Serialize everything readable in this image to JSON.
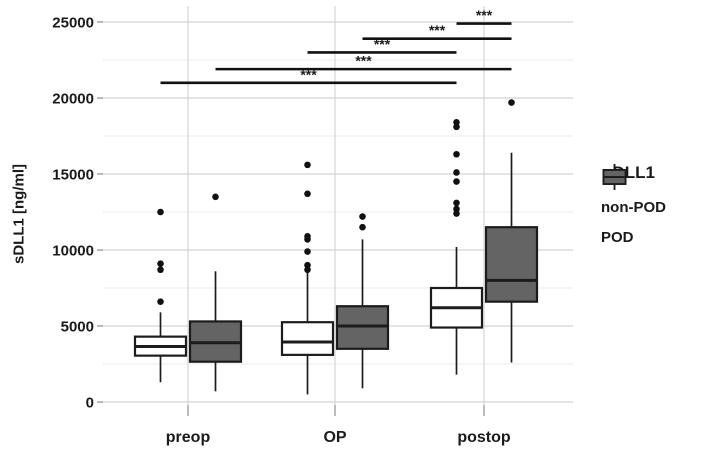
{
  "figure": {
    "y_axis_title": "sDLL1 [ng/ml]"
  },
  "legend": {
    "title": "sDLL1",
    "entries": [
      {
        "label": "non-POD",
        "fill": "#ffffff"
      },
      {
        "label": "POD",
        "fill": "#646464"
      }
    ]
  },
  "colors": {
    "box_stroke": "#1c1c1c",
    "grid_major": "#d4d4d4",
    "grid_minor": "#ebebeb",
    "tick": "#8f8f8f",
    "text": "#1a1a1a",
    "sig_bar": "#111111"
  },
  "chart_data": {
    "type": "grouped_boxplot",
    "title": "",
    "xlabel": "",
    "ylabel": "sDLL1 [ng/ml]",
    "categories": [
      "preop",
      "OP",
      "postop"
    ],
    "y_axis": {
      "min": 0,
      "max": 25000,
      "major_ticks": [
        0,
        5000,
        10000,
        15000,
        20000,
        25000
      ],
      "minor_ticks": [
        2500,
        7500,
        12500,
        17500,
        22500
      ]
    },
    "grid": true,
    "legend_title": "sDLL1",
    "legend_position": "right",
    "series": [
      {
        "name": "non-POD",
        "fill": "#ffffff",
        "boxes": [
          {
            "category": "preop",
            "whisker_low": 1300,
            "q1": 3050,
            "median": 3650,
            "q3": 4300,
            "whisker_high": 5900,
            "outliers": [
              6600,
              8700,
              9100,
              12500
            ]
          },
          {
            "category": "OP",
            "whisker_low": 500,
            "q1": 3100,
            "median": 3950,
            "q3": 5250,
            "whisker_high": 8500,
            "outliers": [
              8700,
              9000,
              9900,
              10700,
              10900,
              13700,
              15600
            ]
          },
          {
            "category": "postop",
            "whisker_low": 1800,
            "q1": 4900,
            "median": 6200,
            "q3": 7500,
            "whisker_high": 10200,
            "outliers": [
              12400,
              12700,
              13100,
              14500,
              15100,
              16300,
              18100,
              18400
            ]
          }
        ]
      },
      {
        "name": "POD",
        "fill": "#646464",
        "boxes": [
          {
            "category": "preop",
            "whisker_low": 700,
            "q1": 2650,
            "median": 3900,
            "q3": 5300,
            "whisker_high": 8600,
            "outliers": [
              13500
            ]
          },
          {
            "category": "OP",
            "whisker_low": 900,
            "q1": 3500,
            "median": 5000,
            "q3": 6300,
            "whisker_high": 10700,
            "outliers": [
              11500,
              12200
            ]
          },
          {
            "category": "postop",
            "whisker_low": 2600,
            "q1": 6600,
            "median": 8000,
            "q3": 11500,
            "whisker_high": 16400,
            "outliers": [
              19700
            ]
          }
        ]
      }
    ],
    "significance_bars": [
      {
        "label": "***",
        "y": 24900,
        "from": {
          "category": "postop",
          "series": "non-POD"
        },
        "to": {
          "category": "postop",
          "series": "POD"
        }
      },
      {
        "label": "***",
        "y": 23900,
        "from": {
          "category": "OP",
          "series": "POD"
        },
        "to": {
          "category": "postop",
          "series": "POD"
        }
      },
      {
        "label": "***",
        "y": 23000,
        "from": {
          "category": "OP",
          "series": "non-POD"
        },
        "to": {
          "category": "postop",
          "series": "non-POD"
        }
      },
      {
        "label": "***",
        "y": 21900,
        "from": {
          "category": "preop",
          "series": "POD"
        },
        "to": {
          "category": "postop",
          "series": "POD"
        }
      },
      {
        "label": "***",
        "y": 21000,
        "from": {
          "category": "preop",
          "series": "non-POD"
        },
        "to": {
          "category": "postop",
          "series": "non-POD"
        }
      }
    ]
  }
}
